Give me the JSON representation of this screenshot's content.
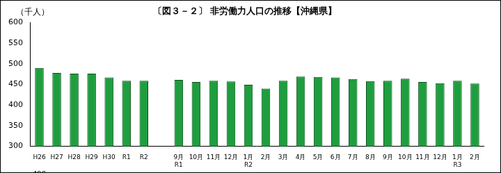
{
  "chart_data": {
    "type": "bar",
    "title": "〔図３－２〕 非労働力人口の推移【沖縄県】",
    "ylabel": "（千人）",
    "categories": [
      "H26",
      "H27",
      "H28",
      "H29",
      "H30",
      "R1",
      "R2",
      null,
      [
        "9月",
        "R1"
      ],
      "10月",
      "11月",
      "12月",
      [
        "1月",
        "R2"
      ],
      "2月",
      "3月",
      "4月",
      "5月",
      "6月",
      "7月",
      "8月",
      "9月",
      "10月",
      "11月",
      "12月",
      [
        "1月",
        "R3"
      ],
      "2月"
    ],
    "values": [
      490,
      478,
      476,
      476,
      467,
      459,
      459,
      null,
      461,
      456,
      459,
      457,
      449,
      440,
      459,
      469,
      468,
      467,
      463,
      458,
      459,
      464,
      456,
      453,
      459,
      452
    ],
    "color": "#1e9e3e",
    "ylim": [
      300,
      600
    ],
    "yticks": [
      300,
      350,
      400,
      450,
      500,
      550,
      600
    ],
    "grid": false,
    "data_labels": true
  }
}
